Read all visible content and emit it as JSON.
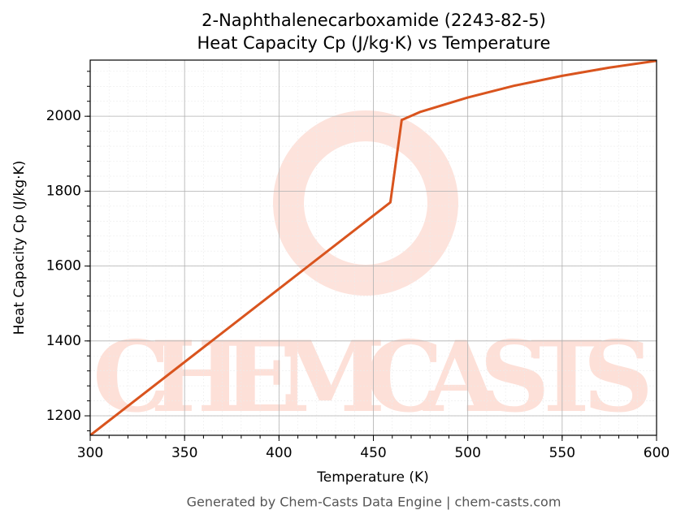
{
  "chart_data": {
    "type": "line",
    "title": "2-Naphthalenecarboxamide (2243-82-5)",
    "subtitle": "Heat Capacity Cp (J/kg·K) vs Temperature",
    "x_label": "Temperature (K)",
    "y_label": "Heat Capacity Cp (J/kg·K)",
    "footer": "Generated by Chem-Casts Data Engine | chem-casts.com",
    "watermark": "CHEMCASTS",
    "x": [
      300,
      459,
      465,
      475,
      500,
      525,
      550,
      575,
      600
    ],
    "series": [
      {
        "name": "Cp",
        "color": "#d9541e",
        "values": [
          1148,
          1770,
          1990,
          2012,
          2050,
          2082,
          2108,
          2130,
          2148
        ]
      }
    ],
    "xlim": [
      300,
      600
    ],
    "xticks": [
      300,
      350,
      400,
      450,
      500,
      550,
      600
    ],
    "ylim": [
      1148,
      2150
    ],
    "yticks": [
      1200,
      1400,
      1600,
      1800,
      2000
    ],
    "grid": true
  }
}
